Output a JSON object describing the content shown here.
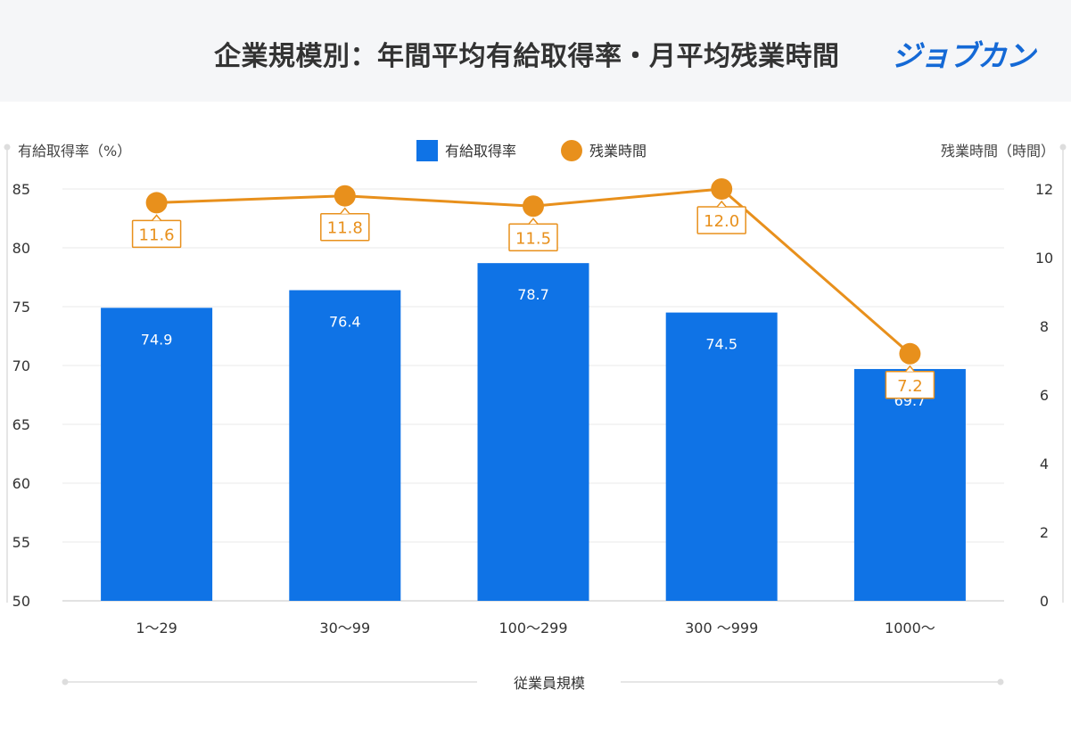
{
  "header": {
    "title": "企業規模別：年間平均有給取得率・月平均残業時間",
    "logo_text": "ジョブカン"
  },
  "colors": {
    "bar": "#0f73e6",
    "line": "#e8901c",
    "header_bg": "#f5f6f8",
    "grid": "#e8e8e8",
    "axis": "#d8d8d8",
    "logo": "#1469d6"
  },
  "chart_data": {
    "type": "bar",
    "categories": [
      "1〜29",
      "30〜99",
      "100〜299",
      "300 〜999",
      "1000〜"
    ],
    "xlabel": "従業員規模",
    "series": [
      {
        "name": "有給取得率",
        "type": "bar",
        "axis": "left",
        "values": [
          74.9,
          76.4,
          78.7,
          74.5,
          69.7
        ]
      },
      {
        "name": "残業時間",
        "type": "line",
        "axis": "right",
        "values": [
          11.6,
          11.8,
          11.5,
          12.0,
          7.2
        ]
      }
    ],
    "y_left": {
      "label": "有給取得率（%）",
      "ylim": [
        50,
        85
      ],
      "ticks": [
        "85",
        "80",
        "75",
        "70",
        "65",
        "60",
        "55",
        "50"
      ]
    },
    "y_right": {
      "label": "残業時間（時間）",
      "ylim": [
        0,
        12
      ],
      "ticks": [
        "12",
        "10",
        "8",
        "6",
        "4",
        "2",
        "0"
      ]
    },
    "legend": {
      "position": "top-center",
      "items": [
        "有給取得率",
        "残業時間"
      ]
    },
    "grid": true
  }
}
